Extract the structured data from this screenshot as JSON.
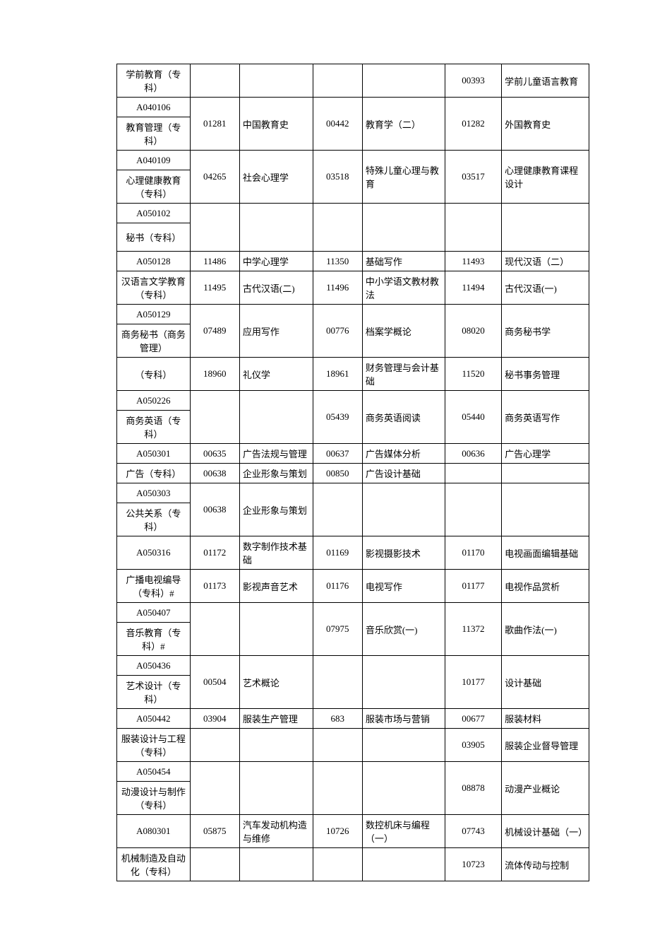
{
  "table": {
    "border_color": "#000000",
    "background_color": "#ffffff",
    "font_size": 13,
    "rows": [
      {
        "c1": "学前教育（专科）",
        "c2": "",
        "c3": "",
        "c4": "",
        "c5": "",
        "c6": "00393",
        "c7": "学前儿童语言教育"
      },
      {
        "c1": "A040106",
        "c2": "",
        "c3": "",
        "c4": "",
        "c5": "",
        "c6": "",
        "c7": ""
      },
      {
        "c1": "教育管理（专科）",
        "c2": "01281",
        "c3": "中国教育史",
        "c4": "00442",
        "c5": "教育学（二）",
        "c6": "01282",
        "c7": "外国教育史",
        "merge_up": [
          2,
          3,
          4,
          5,
          6,
          7
        ]
      },
      {
        "c1": "A040109",
        "c2": "",
        "c3": "",
        "c4": "",
        "c5": "",
        "c6": "",
        "c7": ""
      },
      {
        "c1": "心理健康教育（专科）",
        "c2": "04265",
        "c3": "社会心理学",
        "c4": "03518",
        "c5": "特殊儿童心理与教育",
        "c6": "03517",
        "c7": "心理健康教育课程设计",
        "merge_up": [
          2,
          3,
          4,
          5,
          6,
          7
        ]
      },
      {
        "c1": "A050102",
        "c2": "",
        "c3": "",
        "c4": "",
        "c5": "",
        "c6": "",
        "c7": ""
      },
      {
        "c1": "秘书（专科）",
        "c2": "",
        "c3": "",
        "c4": "",
        "c5": "",
        "c6": "",
        "c7": "",
        "merge_up": [
          2,
          3,
          4,
          5,
          6,
          7
        ],
        "tall": true
      },
      {
        "c1": "A050128",
        "c2": "11486",
        "c3": "中学心理学",
        "c4": "11350",
        "c5": "基础写作",
        "c6": "11493",
        "c7": "现代汉语（二）"
      },
      {
        "c1": "汉语言文学教育（专科）",
        "c2": "11495",
        "c3": "古代汉语(二)",
        "c4": "11496",
        "c5": "中小学语文教材教法",
        "c6": "11494",
        "c7": "古代汉语(一)"
      },
      {
        "c1": "A050129",
        "c2": "",
        "c3": "",
        "c4": "",
        "c5": "",
        "c6": "",
        "c7": ""
      },
      {
        "c1": "商务秘书（商务管理）",
        "c2": "07489",
        "c3": "应用写作",
        "c4": "00776",
        "c5": "档案学概论",
        "c6": "08020",
        "c7": "商务秘书学",
        "merge_up": [
          2,
          3,
          4,
          5,
          6,
          7
        ]
      },
      {
        "c1": "（专科）",
        "c2": "18960",
        "c3": "礼仪学",
        "c4": "18961",
        "c5": "财务管理与会计基础",
        "c6": "11520",
        "c7": "秘书事务管理"
      },
      {
        "c1": "A050226",
        "c2": "",
        "c3": "",
        "c4": "",
        "c5": "",
        "c6": "",
        "c7": ""
      },
      {
        "c1": "商务英语（专科）",
        "c2": "",
        "c3": "",
        "c4": "05439",
        "c5": "商务英语阅读",
        "c6": "05440",
        "c7": "商务英语写作",
        "merge_up": [
          2,
          3,
          4,
          5,
          6,
          7
        ]
      },
      {
        "c1": "A050301",
        "c2": "00635",
        "c3": "广告法规与管理",
        "c4": "00637",
        "c5": "广告媒体分析",
        "c6": "00636",
        "c7": "广告心理学"
      },
      {
        "c1": "广告（专科）",
        "c2": "00638",
        "c3": "企业形象与策划",
        "c4": "00850",
        "c5": "广告设计基础",
        "c6": "",
        "c7": ""
      },
      {
        "c1": "A050303",
        "c2": "",
        "c3": "",
        "c4": "",
        "c5": "",
        "c6": "",
        "c7": ""
      },
      {
        "c1": "公共关系（专科）",
        "c2": "00638",
        "c3": "企业形象与策划",
        "c4": "",
        "c5": "",
        "c6": "",
        "c7": "",
        "merge_up": [
          2,
          3,
          4,
          5,
          6,
          7
        ]
      },
      {
        "c1": "A050316",
        "c2": "01172",
        "c3": "数字制作技术基础",
        "c4": "01169",
        "c5": "影视摄影技术",
        "c6": "01170",
        "c7": "电视画面编辑基础"
      },
      {
        "c1": "广播电视编导（专科）#",
        "c2": "01173",
        "c3": "影视声音艺术",
        "c4": "01176",
        "c5": "电视写作",
        "c6": "01177",
        "c7": "电视作品赏析"
      },
      {
        "c1": "A050407",
        "c2": "",
        "c3": "",
        "c4": "",
        "c5": "",
        "c6": "",
        "c7": ""
      },
      {
        "c1": "音乐教育（专科）#",
        "c2": "",
        "c3": "",
        "c4": "07975",
        "c5": "音乐欣赏(一)",
        "c6": "11372",
        "c7": "歌曲作法(一)",
        "merge_up": [
          2,
          3,
          4,
          5,
          6,
          7
        ]
      },
      {
        "c1": "A050436",
        "c2": "",
        "c3": "",
        "c4": "",
        "c5": "",
        "c6": "",
        "c7": ""
      },
      {
        "c1": "艺术设计（专科）",
        "c2": "00504",
        "c3": "艺术概论",
        "c4": "",
        "c5": "",
        "c6": "10177",
        "c7": "设计基础",
        "merge_up": [
          2,
          3,
          4,
          5,
          6,
          7
        ]
      },
      {
        "c1": "A050442",
        "c2": "03904",
        "c3": "服装生产管理",
        "c4": "683",
        "c5": "服装市场与营销",
        "c6": "00677",
        "c7": "服装材料"
      },
      {
        "c1": "服装设计与工程（专科）",
        "c2": "",
        "c3": "",
        "c4": "",
        "c5": "",
        "c6": "03905",
        "c7": "服装企业督导管理"
      },
      {
        "c1": "A050454",
        "c2": "",
        "c3": "",
        "c4": "",
        "c5": "",
        "c6": "",
        "c7": ""
      },
      {
        "c1": "动漫设计与制作（专科）",
        "c2": "",
        "c3": "",
        "c4": "",
        "c5": "",
        "c6": "08878",
        "c7": "动漫产业概论",
        "merge_up": [
          2,
          3,
          4,
          5,
          6,
          7
        ]
      },
      {
        "c1": "A080301",
        "c2": "05875",
        "c3": "汽车发动机构造与维修",
        "c4": "10726",
        "c5": "数控机床与编程（一）",
        "c6": "07743",
        "c7": "机械设计基础（一）"
      },
      {
        "c1": "机械制造及自动化（专科）",
        "c2": "",
        "c3": "",
        "c4": "",
        "c5": "",
        "c6": "10723",
        "c7": "流体传动与控制"
      }
    ]
  }
}
